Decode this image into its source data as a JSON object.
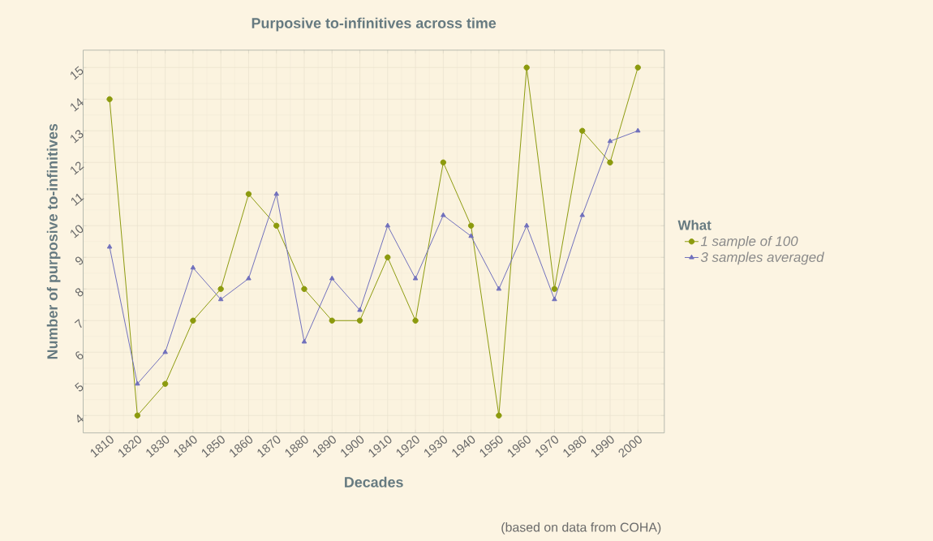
{
  "chart_data": {
    "type": "line",
    "title": "Purposive to-infinitives across time",
    "xlabel": "Decades",
    "ylabel": "Number of purposive to-infinitives",
    "legend_title": "What",
    "annotations": [
      "(based on data from COHA)"
    ],
    "x": [
      1810,
      1820,
      1830,
      1840,
      1850,
      1860,
      1870,
      1880,
      1890,
      1900,
      1910,
      1920,
      1930,
      1940,
      1950,
      1960,
      1970,
      1980,
      1990,
      2000
    ],
    "series": [
      {
        "name": "1 sample of 100",
        "color": "#8c9a0e",
        "marker": "circle",
        "values": [
          14,
          4,
          5,
          7,
          8,
          11,
          10,
          8,
          7,
          7,
          9,
          7,
          12,
          10,
          4,
          15,
          8,
          13,
          12,
          15
        ]
      },
      {
        "name": "3 samples averaged",
        "color": "#7070bc",
        "marker": "triangle",
        "values": [
          9.33,
          5,
          6,
          8.67,
          7.67,
          8.33,
          11,
          6.33,
          8.33,
          7.33,
          10,
          8.33,
          10.33,
          9.67,
          8,
          10,
          7.67,
          10.33,
          12.67,
          13
        ]
      }
    ],
    "xlim": [
      1800.5,
      2009.5
    ],
    "ylim": [
      3.45,
      15.55
    ],
    "xticks": [
      1810,
      1820,
      1830,
      1840,
      1850,
      1860,
      1870,
      1880,
      1890,
      1900,
      1910,
      1920,
      1930,
      1940,
      1950,
      1960,
      1970,
      1980,
      1990,
      2000
    ],
    "yticks": [
      4,
      5,
      6,
      7,
      8,
      9,
      10,
      11,
      12,
      13,
      14,
      15
    ],
    "grid": true,
    "legend": "right",
    "line_style": "solid"
  }
}
